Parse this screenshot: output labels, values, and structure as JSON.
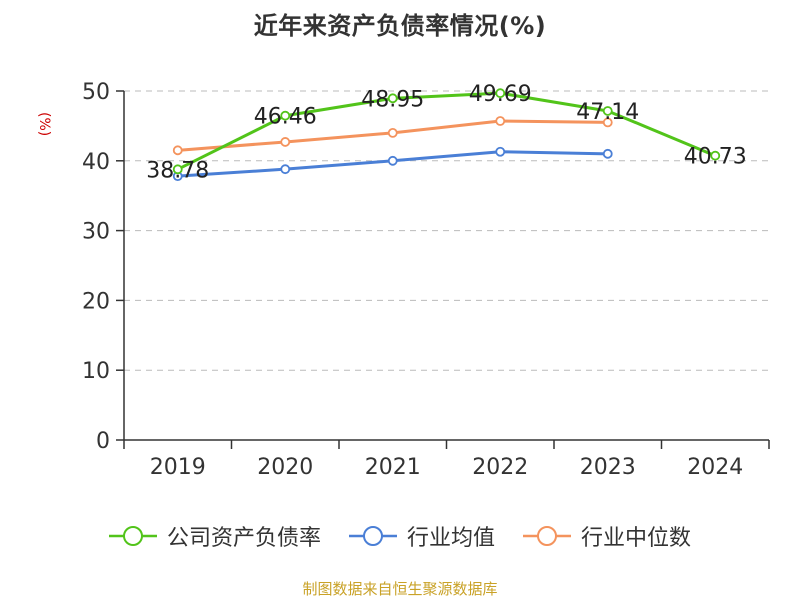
{
  "title": "近年来资产负债率情况(%)",
  "y_unit": "(%)",
  "source_note": "制图数据来自恒生聚源数据库",
  "chart_data": {
    "type": "line",
    "title": "近年来资产负债率情况(%)",
    "xlabel": "",
    "ylabel": "(%)",
    "categories": [
      "2019",
      "2020",
      "2021",
      "2022",
      "2023",
      "2024"
    ],
    "ylim": [
      0,
      50
    ],
    "yticks": [
      0,
      10,
      20,
      30,
      40,
      50
    ],
    "grid": true,
    "legend_position": "bottom",
    "series": [
      {
        "name": "公司资产负债率",
        "color": "#52c41a",
        "values": [
          38.78,
          46.46,
          48.95,
          49.69,
          47.14,
          40.73
        ],
        "data_labels": [
          "38.78",
          "46.46",
          "48.95",
          "49.69",
          "47.14",
          "40.73"
        ]
      },
      {
        "name": "行业均值",
        "color": "#4a7fd6",
        "values": [
          37.8,
          38.8,
          40.0,
          41.3,
          41.0,
          null
        ],
        "data_labels": []
      },
      {
        "name": "行业中位数",
        "color": "#f4935d",
        "values": [
          41.5,
          42.7,
          44.0,
          45.7,
          45.5,
          null
        ],
        "data_labels": []
      }
    ]
  }
}
